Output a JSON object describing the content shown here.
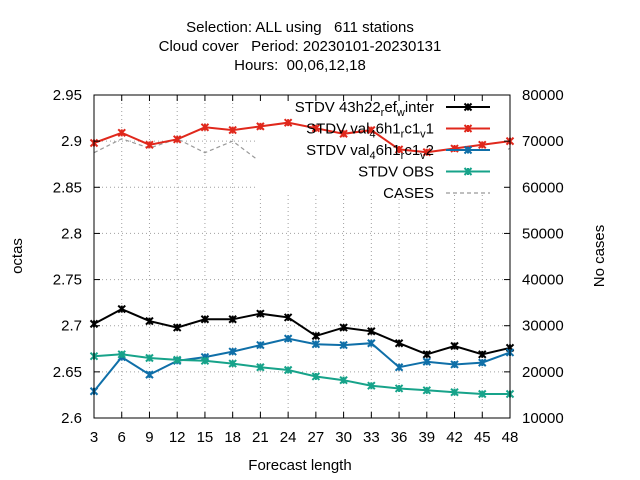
{
  "chart_data": {
    "type": "line",
    "title_lines": [
      "Selection: ALL using   611 stations",
      "Cloud cover   Period: 20230101-20230131",
      "Hours:  00,06,12,18"
    ],
    "xlabel": "Forecast length",
    "ylabel": "octas",
    "y2label": "No cases",
    "x": [
      3,
      6,
      9,
      12,
      15,
      18,
      21,
      24,
      27,
      30,
      33,
      36,
      39,
      42,
      45,
      48
    ],
    "ylim": [
      2.6,
      2.95
    ],
    "yticks": [
      "2.6",
      "2.65",
      "2.7",
      "2.75",
      "2.8",
      "2.85",
      "2.9",
      "2.95"
    ],
    "y2lim": [
      10000,
      80000
    ],
    "y2ticks": [
      "10000",
      "20000",
      "30000",
      "40000",
      "50000",
      "60000",
      "70000",
      "80000"
    ],
    "grid": true,
    "legend_position": "top-right",
    "series": [
      {
        "name": "STDV 43h22_ref_winter",
        "legend": {
          "base": "STDV 43h22",
          "s1": "r",
          "m1": "ef",
          "s2": "w",
          "m2": "inter"
        },
        "color": "#000000",
        "marker": "x",
        "dash": false,
        "axis": "y",
        "values": [
          2.702,
          2.718,
          2.705,
          2.698,
          2.707,
          2.707,
          2.713,
          2.709,
          2.689,
          2.698,
          2.694,
          2.681,
          2.669,
          2.678,
          2.669,
          2.676
        ]
      },
      {
        "name": "STDV val_46h1_rc1_v1",
        "legend": {
          "base": "STDV val",
          "s1": "4",
          "m1": "6h1",
          "s2": "r",
          "m2": "c1",
          "s3": "v",
          "m3": "1"
        },
        "color": "#e0281c",
        "marker": "x",
        "dash": false,
        "axis": "y",
        "values": [
          2.898,
          2.909,
          2.896,
          2.902,
          2.915,
          2.912,
          2.916,
          2.92,
          2.914,
          2.908,
          2.912,
          2.891,
          2.888,
          2.892,
          2.896,
          2.9
        ]
      },
      {
        "name": "STDV val_46h1_rc1_v2",
        "legend": {
          "base": "STDV val",
          "s1": "4",
          "m1": "6h1",
          "s2": "r",
          "m2": "c1",
          "s3": "v",
          "m3": "2"
        },
        "color": "#0f6fa8",
        "marker": "x",
        "dash": false,
        "axis": "y",
        "values": [
          2.629,
          2.666,
          2.647,
          2.662,
          2.666,
          2.672,
          2.679,
          2.686,
          2.68,
          2.679,
          2.681,
          2.655,
          2.661,
          2.658,
          2.66,
          2.671
        ]
      },
      {
        "name": "STDV OBS",
        "legend": {
          "base": "STDV OBS"
        },
        "color": "#17a38a",
        "marker": "x",
        "dash": false,
        "axis": "y",
        "values": [
          2.667,
          2.669,
          2.665,
          2.663,
          2.662,
          2.659,
          2.655,
          2.652,
          2.645,
          2.641,
          2.635,
          2.632,
          2.63,
          2.628,
          2.626,
          2.626
        ]
      },
      {
        "name": "CASES",
        "legend": {
          "base": "CASES"
        },
        "color": "#999999",
        "marker": "none",
        "dash": true,
        "axis": "y2",
        "values": [
          67500,
          70500,
          68500,
          70500,
          67500,
          70000,
          65500,
          68500,
          65500,
          67000,
          69000,
          68000,
          66500,
          69500,
          65000,
          68500
        ]
      }
    ]
  }
}
